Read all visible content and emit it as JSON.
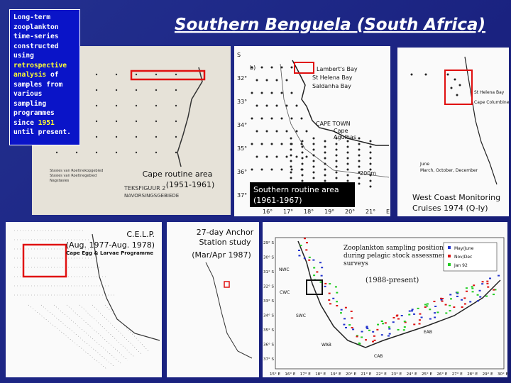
{
  "title": "Southern Benguela (South Africa)",
  "intro": {
    "text_1": "Long-term zooplankton time-series constructed using",
    "highlight_1": "retrospective analysis",
    "text_2": "of samples from various sampling programmes since",
    "highlight_2": "1951",
    "text_3": "until present."
  },
  "panels": [
    {
      "caption": [
        "Cape routine area",
        "(1951-1961)"
      ],
      "labels": [
        "TEKSFIGUUR 2",
        "NAVORSINGSGEBIEDE",
        "Stasies van Roetinekopgebied",
        "Stasies van Roetinegebied",
        "Nagstasies"
      ]
    },
    {
      "caption": [
        "Southern routine area",
        "(1961-1967)"
      ],
      "labels": [
        "b)",
        "Lambert's Bay",
        "St Helena Bay",
        "Saldanha Bay",
        "CAPE TOWN",
        "Cape",
        "Agulhas",
        "200m"
      ],
      "lat_ticks": [
        "S",
        "32°",
        "33°",
        "34°",
        "35°",
        "36°",
        "37°"
      ],
      "lon_ticks": [
        "16°",
        "17°",
        "18°",
        "19°",
        "20°",
        "21°",
        "E"
      ]
    },
    {
      "caption": [
        "West Coast Monitoring",
        "Cruises 1974 (Q-ly)"
      ],
      "labels": [
        "St Helena Bay",
        "Cape Columbine",
        "June",
        "March, October, December"
      ]
    },
    {
      "caption": [
        "C.E.L.P.",
        "(Aug. 1977-Aug. 1978)"
      ],
      "labels": [
        "Cape Egg & Larvae Programme"
      ]
    },
    {
      "caption": [
        "27-day Anchor",
        "Station study",
        "(Mar/Apr 1987)"
      ]
    },
    {
      "caption": [
        "Zooplankton sampling positions",
        "during pelagic stock assessment",
        "surveys",
        "(1988-present)"
      ],
      "legend": [
        "May/June",
        "Nov/Dec",
        "Jan 92"
      ],
      "regions": [
        "NWC",
        "CWC",
        "SWC",
        "WAB",
        "CAB",
        "EAB"
      ],
      "lat_ticks": [
        "29° S",
        "30° S",
        "31° S",
        "32° S",
        "33° S",
        "34° S",
        "35° S",
        "36° S",
        "37° S"
      ],
      "lon_ticks": [
        "15° E",
        "16° E",
        "17° E",
        "18° E",
        "19° E",
        "20° E",
        "21° E",
        "22° E",
        "23° E",
        "24° E",
        "25° E",
        "26° E",
        "27° E",
        "28° E",
        "29° E",
        "30° E"
      ]
    }
  ]
}
